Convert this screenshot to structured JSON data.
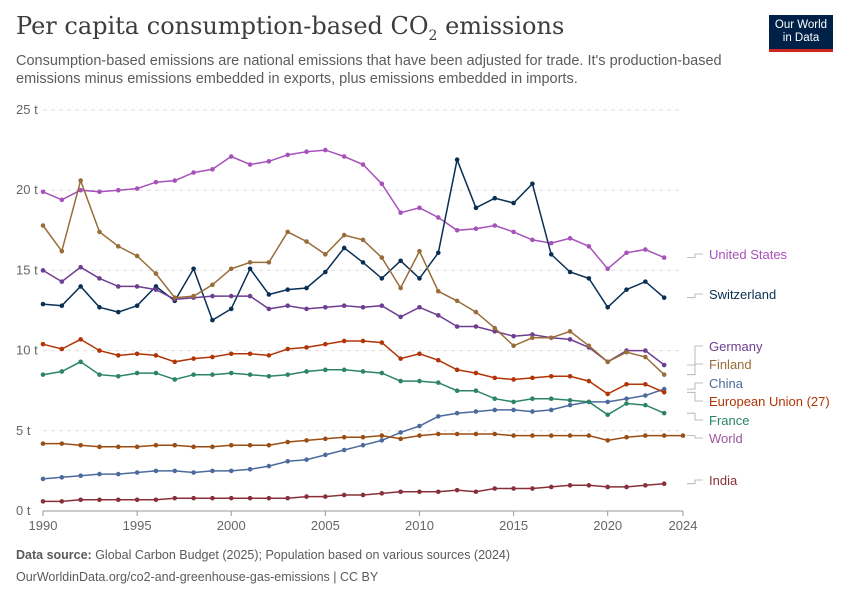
{
  "header": {
    "title": "Per capita consumption-based CO",
    "title_sub": "2",
    "title_tail": " emissions",
    "subtitle": "Consumption-based emissions are national emissions that have been adjusted for trade. It's production-based emissions minus emissions embedded in exports, plus emissions embedded in imports."
  },
  "logo": {
    "line1": "Our World",
    "line2": "in Data"
  },
  "footer": {
    "source_label": "Data source:",
    "source_text": " Global Carbon Budget (2025); Population based on various sources (2024)",
    "url_text": "OurWorldinData.org/co2-and-greenhouse-gas-emissions | CC BY"
  },
  "chart_data": {
    "type": "line",
    "x_unit": "year",
    "y_unit": "t",
    "xlim": [
      1990,
      2024
    ],
    "ylim": [
      0,
      25
    ],
    "x_ticks": [
      "1990",
      "1995",
      "2000",
      "2005",
      "2010",
      "2015",
      "2020",
      "2024"
    ],
    "y_ticks": [
      "0 t",
      "5 t",
      "10 t",
      "15 t",
      "20 t",
      "25 t"
    ],
    "y_tick_values": [
      0,
      5,
      10,
      15,
      20,
      25
    ],
    "grid": "horizontal dashed",
    "x": [
      1990,
      1991,
      1992,
      1993,
      1994,
      1995,
      1996,
      1997,
      1998,
      1999,
      2000,
      2001,
      2002,
      2003,
      2004,
      2005,
      2006,
      2007,
      2008,
      2009,
      2010,
      2011,
      2012,
      2013,
      2014,
      2015,
      2016,
      2017,
      2018,
      2019,
      2020,
      2021,
      2022,
      2023,
      2024
    ],
    "series": [
      {
        "name": "United States",
        "color": "#a652ba",
        "values": [
          19.9,
          19.4,
          20.0,
          19.9,
          20.0,
          20.1,
          20.5,
          20.6,
          21.1,
          21.3,
          22.1,
          21.6,
          21.8,
          22.2,
          22.4,
          22.5,
          22.1,
          21.6,
          20.4,
          18.6,
          18.9,
          18.3,
          17.5,
          17.6,
          17.8,
          17.4,
          16.9,
          16.7,
          17.0,
          16.5,
          15.1,
          16.1,
          16.3,
          15.8,
          null
        ]
      },
      {
        "name": "Switzerland",
        "color": "#0a2f54",
        "values": [
          12.9,
          12.8,
          14.0,
          12.7,
          12.4,
          12.8,
          14.0,
          13.1,
          15.1,
          11.9,
          12.6,
          15.1,
          13.5,
          13.8,
          13.9,
          14.9,
          16.4,
          15.5,
          14.5,
          15.6,
          14.5,
          16.1,
          21.9,
          18.9,
          19.5,
          19.2,
          20.4,
          16.0,
          14.9,
          14.5,
          12.7,
          13.8,
          14.3,
          13.3,
          null
        ]
      },
      {
        "name": "Germany",
        "color": "#6d3e91",
        "values": [
          15.0,
          14.3,
          15.2,
          14.5,
          14.0,
          14.0,
          13.8,
          13.2,
          13.3,
          13.4,
          13.4,
          13.4,
          12.6,
          12.8,
          12.6,
          12.7,
          12.8,
          12.7,
          12.8,
          12.1,
          12.7,
          12.2,
          11.5,
          11.5,
          11.2,
          10.9,
          11.0,
          10.8,
          10.7,
          10.2,
          9.3,
          10.0,
          10.0,
          9.1,
          null
        ]
      },
      {
        "name": "Finland",
        "color": "#996d39",
        "values": [
          17.8,
          16.2,
          20.6,
          17.4,
          16.5,
          15.9,
          14.8,
          13.3,
          13.4,
          14.1,
          15.1,
          15.5,
          15.5,
          17.4,
          16.8,
          16.0,
          17.2,
          16.9,
          15.8,
          13.9,
          16.2,
          13.7,
          13.1,
          12.4,
          11.4,
          10.3,
          10.8,
          10.8,
          11.2,
          10.3,
          9.3,
          9.9,
          9.6,
          8.5,
          null
        ]
      },
      {
        "name": "China",
        "color": "#4c6a9c",
        "values": [
          2.0,
          2.1,
          2.2,
          2.3,
          2.3,
          2.4,
          2.5,
          2.5,
          2.4,
          2.5,
          2.5,
          2.6,
          2.8,
          3.1,
          3.2,
          3.5,
          3.8,
          4.1,
          4.4,
          4.9,
          5.3,
          5.9,
          6.1,
          6.2,
          6.3,
          6.3,
          6.2,
          6.3,
          6.6,
          6.8,
          6.8,
          7.0,
          7.2,
          7.6,
          null
        ]
      },
      {
        "name": "European Union (27)",
        "color": "#b13507",
        "values": [
          10.4,
          10.1,
          10.7,
          10.0,
          9.7,
          9.8,
          9.7,
          9.3,
          9.5,
          9.6,
          9.8,
          9.8,
          9.7,
          10.1,
          10.2,
          10.4,
          10.6,
          10.6,
          10.5,
          9.5,
          9.8,
          9.4,
          8.8,
          8.6,
          8.3,
          8.2,
          8.3,
          8.4,
          8.4,
          8.1,
          7.3,
          7.9,
          7.9,
          7.4,
          null
        ]
      },
      {
        "name": "France",
        "color": "#2c8465",
        "values": [
          8.5,
          8.7,
          9.3,
          8.5,
          8.4,
          8.6,
          8.6,
          8.2,
          8.5,
          8.5,
          8.6,
          8.5,
          8.4,
          8.5,
          8.7,
          8.8,
          8.8,
          8.7,
          8.6,
          8.1,
          8.1,
          8.0,
          7.5,
          7.5,
          7.0,
          6.8,
          7.0,
          7.0,
          6.9,
          6.8,
          6.0,
          6.7,
          6.6,
          6.1,
          null
        ]
      },
      {
        "name": "World",
        "color": "#a2559c",
        "line_color": "#9a4e15",
        "values": [
          4.2,
          4.2,
          4.1,
          4.0,
          4.0,
          4.0,
          4.1,
          4.1,
          4.0,
          4.0,
          4.1,
          4.1,
          4.1,
          4.3,
          4.4,
          4.5,
          4.6,
          4.6,
          4.7,
          4.5,
          4.7,
          4.8,
          4.8,
          4.8,
          4.8,
          4.7,
          4.7,
          4.7,
          4.7,
          4.7,
          4.4,
          4.6,
          4.7,
          4.7,
          4.7
        ]
      },
      {
        "name": "India",
        "color": "#883039",
        "values": [
          0.6,
          0.6,
          0.7,
          0.7,
          0.7,
          0.7,
          0.7,
          0.8,
          0.8,
          0.8,
          0.8,
          0.8,
          0.8,
          0.8,
          0.9,
          0.9,
          1.0,
          1.0,
          1.1,
          1.2,
          1.2,
          1.2,
          1.3,
          1.2,
          1.4,
          1.4,
          1.4,
          1.5,
          1.6,
          1.6,
          1.5,
          1.5,
          1.6,
          1.7,
          null
        ]
      }
    ]
  }
}
